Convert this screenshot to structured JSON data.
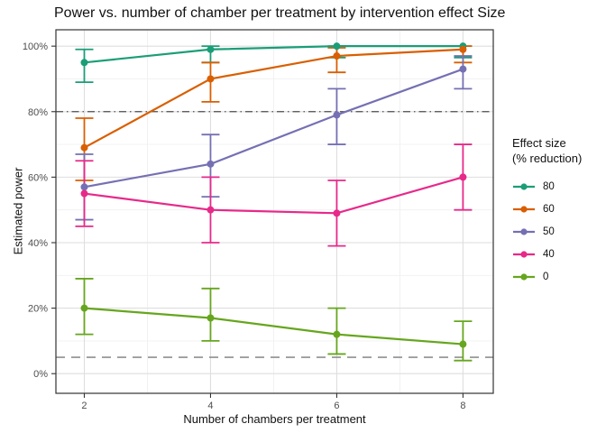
{
  "chart_data": {
    "type": "line",
    "title": "Power vs. number of chamber per treatment by intervention effect Size",
    "xlabel": "Number of chambers per treatment",
    "ylabel": "Estimated power",
    "x": [
      2,
      4,
      6,
      8
    ],
    "x_tick_labels": [
      "2",
      "4",
      "6",
      "8"
    ],
    "x_minor_ticks": [
      3,
      5,
      7
    ],
    "y_ticks": [
      0,
      20,
      40,
      60,
      80,
      100
    ],
    "y_tick_labels": [
      "0%",
      "20%",
      "40%",
      "60%",
      "80%",
      "100%"
    ],
    "y_minor_ticks": [
      10,
      30,
      50,
      70,
      90
    ],
    "xlim": [
      1.55,
      8.48
    ],
    "ylim": [
      -6,
      105
    ],
    "grid": true,
    "legend": {
      "position": "right",
      "title_line1": "Effect size",
      "title_line2": "(% reduction)"
    },
    "reference_lines": [
      {
        "y": 80,
        "style": "dashdot",
        "color": "#4d4d4d"
      },
      {
        "y": 5,
        "style": "dashed",
        "color": "#8f8f8f"
      }
    ],
    "series": [
      {
        "name": "80",
        "color": "#1b9e77",
        "values": [
          95,
          99,
          100,
          100
        ],
        "ci_low": [
          89,
          95,
          96.5,
          96.5
        ],
        "ci_high": [
          99,
          100,
          100,
          100
        ]
      },
      {
        "name": "60",
        "color": "#d95f02",
        "values": [
          69,
          90,
          97,
          99
        ],
        "ci_low": [
          59,
          83,
          92,
          95
        ],
        "ci_high": [
          78,
          95,
          99.5,
          100
        ]
      },
      {
        "name": "50",
        "color": "#7570b3",
        "values": [
          57,
          64,
          79,
          93
        ],
        "ci_low": [
          47,
          54,
          70,
          87
        ],
        "ci_high": [
          67,
          73,
          87,
          97
        ]
      },
      {
        "name": "40",
        "color": "#e7298a",
        "values": [
          55,
          50,
          49,
          60
        ],
        "ci_low": [
          45,
          40,
          39,
          50
        ],
        "ci_high": [
          65,
          60,
          59,
          70
        ]
      },
      {
        "name": "0",
        "color": "#66a61e",
        "values": [
          20,
          17,
          12,
          9
        ],
        "ci_low": [
          12,
          10,
          6,
          4
        ],
        "ci_high": [
          29,
          26,
          20,
          16
        ]
      }
    ],
    "style_colors": {
      "panel_border": "#333333",
      "grid_major": "#dedede",
      "grid_minor": "#f0f0f0",
      "tick_label": "#4d4d4d"
    }
  }
}
